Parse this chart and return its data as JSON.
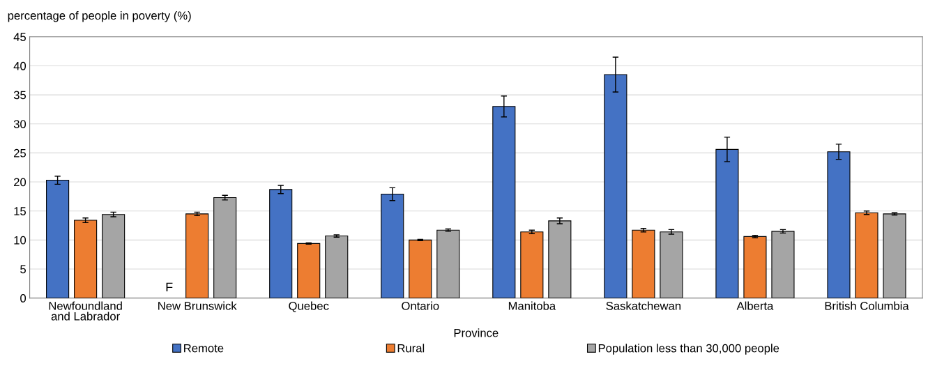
{
  "chart_data": {
    "type": "bar",
    "ylabel": "percentage of people in poverty (%)",
    "xlabel": "Province",
    "categories": [
      "Newfoundland\nand Labrador",
      "New Brunswick",
      "Quebec",
      "Ontario",
      "Manitoba",
      "Saskatchewan",
      "Alberta",
      "British Columbia"
    ],
    "series": [
      {
        "name": "Remote",
        "color": "#4472c4",
        "values": [
          20.3,
          null,
          18.7,
          17.9,
          33.0,
          38.5,
          25.6,
          25.2
        ],
        "errors": [
          0.7,
          null,
          0.7,
          1.1,
          1.8,
          3.0,
          2.1,
          1.3
        ]
      },
      {
        "name": "Rural",
        "color": "#ed7d31",
        "values": [
          13.4,
          14.5,
          9.4,
          10.0,
          11.4,
          11.7,
          10.6,
          14.7
        ],
        "errors": [
          0.4,
          0.3,
          0.1,
          0.1,
          0.3,
          0.3,
          0.2,
          0.3
        ]
      },
      {
        "name": "Population less than 30,000 people",
        "color": "#a5a5a5",
        "values": [
          14.4,
          17.3,
          10.7,
          11.7,
          13.3,
          11.4,
          11.5,
          14.5
        ],
        "errors": [
          0.4,
          0.4,
          0.2,
          0.2,
          0.5,
          0.4,
          0.3,
          0.2
        ]
      }
    ],
    "annotations": [
      {
        "text": "F",
        "x": "New Brunswick",
        "y": 0
      }
    ],
    "ylim": [
      0,
      45
    ],
    "yticks": [
      0,
      5,
      10,
      15,
      20,
      25,
      30,
      35,
      40,
      45
    ],
    "grid": "y",
    "legend": "bottom"
  }
}
